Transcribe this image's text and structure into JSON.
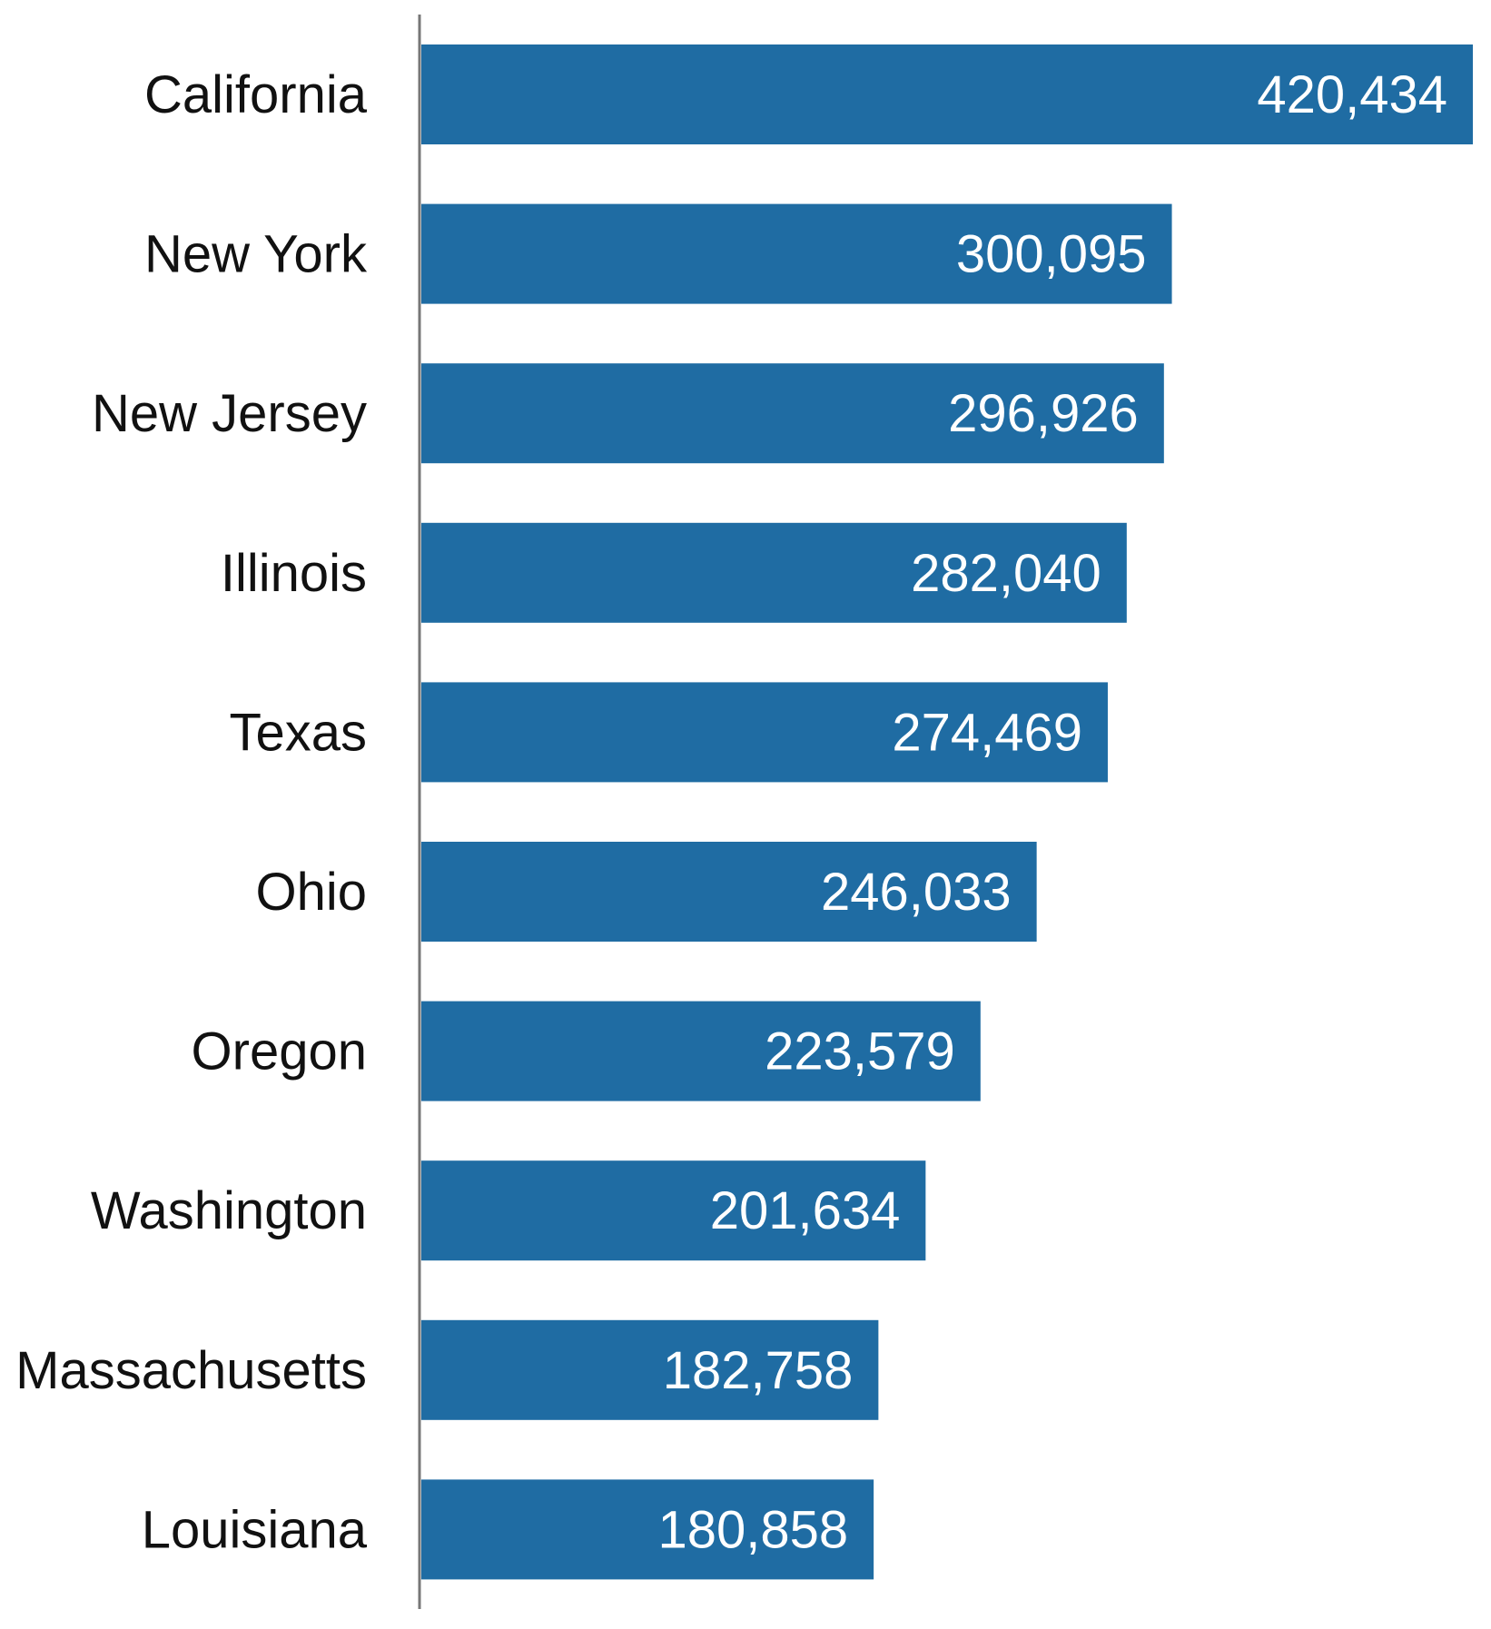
{
  "chart_data": {
    "type": "bar",
    "orientation": "horizontal",
    "categories": [
      "California",
      "New York",
      "New Jersey",
      "Illinois",
      "Texas",
      "Ohio",
      "Oregon",
      "Washington",
      "Massachusetts",
      "Louisiana"
    ],
    "values": [
      420434,
      300095,
      296926,
      282040,
      274469,
      246033,
      223579,
      201634,
      182758,
      180858
    ],
    "labels": [
      "420,434",
      "300,095",
      "296,926",
      "282,040",
      "274,469",
      "246,033",
      "223,579",
      "201,634",
      "182,758",
      "180,858"
    ],
    "title": "",
    "xlabel": "",
    "ylabel": "",
    "xlim": [
      0,
      420434
    ],
    "grid": false,
    "colors": {
      "bar": "#1f6ca3",
      "axis": "#777777"
    }
  }
}
